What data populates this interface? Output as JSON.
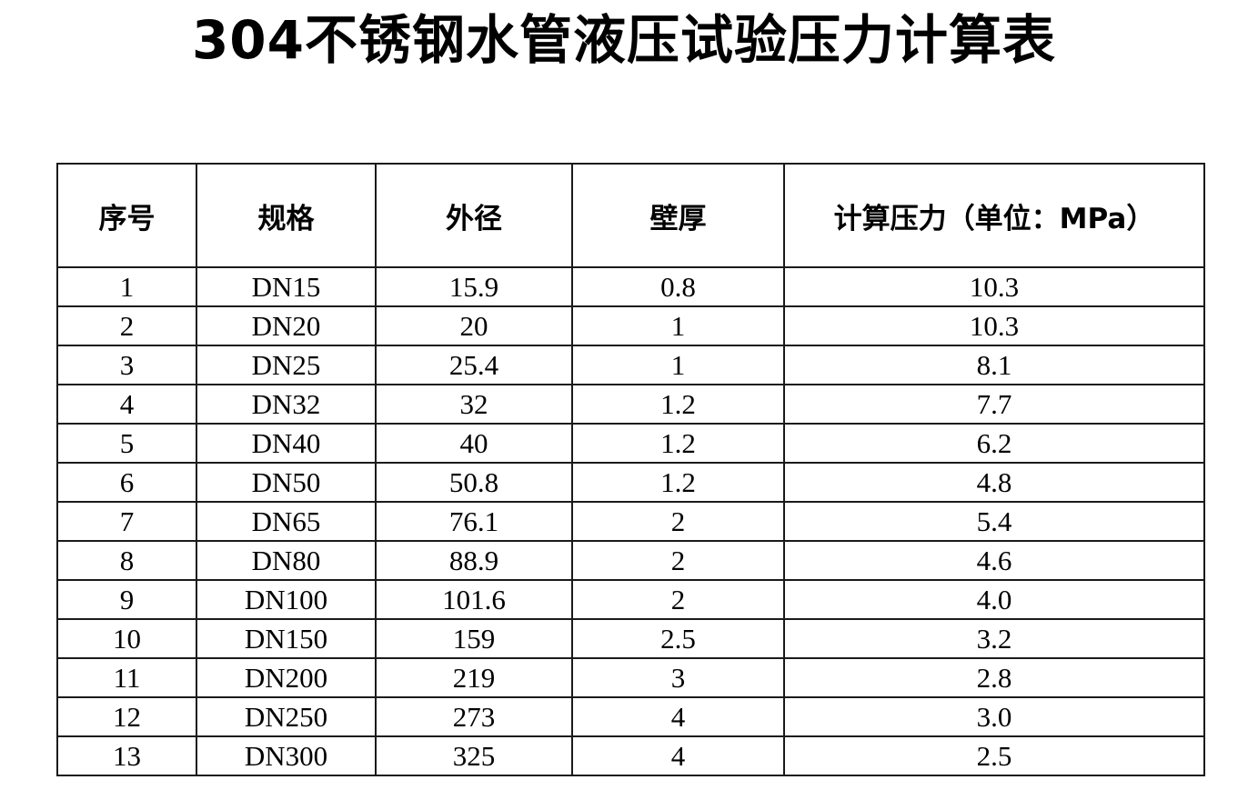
{
  "page": {
    "title": "304不锈钢水管液压试验压力计算表"
  },
  "table": {
    "headers": [
      "序号",
      "规格",
      "外径",
      "壁厚",
      "计算压力（单位：MPa）"
    ],
    "rows": [
      [
        "1",
        "DN15",
        "15.9",
        "0.8",
        "10.3"
      ],
      [
        "2",
        "DN20",
        "20",
        "1",
        "10.3"
      ],
      [
        "3",
        "DN25",
        "25.4",
        "1",
        "8.1"
      ],
      [
        "4",
        "DN32",
        "32",
        "1.2",
        "7.7"
      ],
      [
        "5",
        "DN40",
        "40",
        "1.2",
        "6.2"
      ],
      [
        "6",
        "DN50",
        "50.8",
        "1.2",
        "4.8"
      ],
      [
        "7",
        "DN65",
        "76.1",
        "2",
        "5.4"
      ],
      [
        "8",
        "DN80",
        "88.9",
        "2",
        "4.6"
      ],
      [
        "9",
        "DN100",
        "101.6",
        "2",
        "4.0"
      ],
      [
        "10",
        "DN150",
        "159",
        "2.5",
        "3.2"
      ],
      [
        "11",
        "DN200",
        "219",
        "3",
        "2.8"
      ],
      [
        "12",
        "DN250",
        "273",
        "4",
        "3.0"
      ],
      [
        "13",
        "DN300",
        "325",
        "4",
        "2.5"
      ]
    ]
  },
  "colors": {
    "background": "#ffffff",
    "text": "#000000",
    "border": "#1a1a1a"
  }
}
